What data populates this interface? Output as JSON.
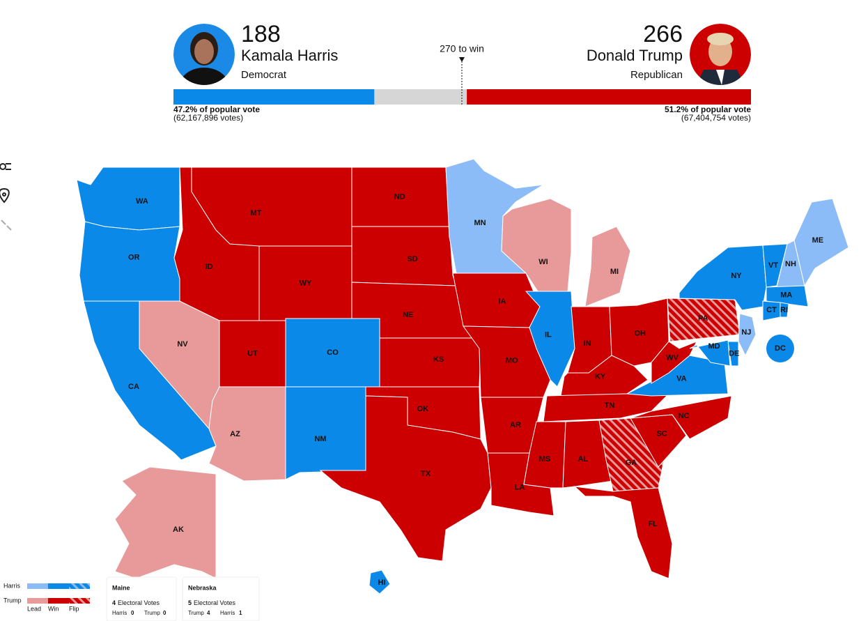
{
  "candidates": [
    {
      "name": "Kamala Harris",
      "party": "Democrat",
      "electoral_votes": 188,
      "popular_vote": "47.2% of popular vote",
      "votes": "(62,167,896 votes)",
      "short": "Harris",
      "win_color": "#0b89e8",
      "lead_color": "#8bbcf7",
      "photo_bg": "#1a8ae6"
    },
    {
      "name": "Donald Trump",
      "party": "Republican",
      "electoral_votes": 266,
      "popular_vote": "51.2% of popular vote",
      "votes": "(67,404,754 votes)",
      "short": "Trump",
      "win_color": "#cc0000",
      "lead_color": "#e89a9a",
      "photo_bg": "#cc0000"
    }
  ],
  "threshold": {
    "value": 270,
    "label": "270 to win"
  },
  "legend": {
    "columns": [
      "Lead",
      "Win",
      "Flip"
    ]
  },
  "states": [
    {
      "abbr": "WA",
      "winner": 0,
      "status": "win"
    },
    {
      "abbr": "OR",
      "winner": 0,
      "status": "win"
    },
    {
      "abbr": "CA",
      "winner": 0,
      "status": "win"
    },
    {
      "abbr": "NV",
      "winner": 1,
      "status": "lead"
    },
    {
      "abbr": "ID",
      "winner": 1,
      "status": "win"
    },
    {
      "abbr": "MT",
      "winner": 1,
      "status": "win"
    },
    {
      "abbr": "WY",
      "winner": 1,
      "status": "win"
    },
    {
      "abbr": "UT",
      "winner": 1,
      "status": "win"
    },
    {
      "abbr": "CO",
      "winner": 0,
      "status": "win"
    },
    {
      "abbr": "AZ",
      "winner": 1,
      "status": "lead"
    },
    {
      "abbr": "NM",
      "winner": 0,
      "status": "win"
    },
    {
      "abbr": "ND",
      "winner": 1,
      "status": "win"
    },
    {
      "abbr": "SD",
      "winner": 1,
      "status": "win"
    },
    {
      "abbr": "NE",
      "winner": 1,
      "status": "win"
    },
    {
      "abbr": "KS",
      "winner": 1,
      "status": "win"
    },
    {
      "abbr": "OK",
      "winner": 1,
      "status": "win"
    },
    {
      "abbr": "TX",
      "winner": 1,
      "status": "win"
    },
    {
      "abbr": "MN",
      "winner": 0,
      "status": "lead"
    },
    {
      "abbr": "IA",
      "winner": 1,
      "status": "win"
    },
    {
      "abbr": "MO",
      "winner": 1,
      "status": "win"
    },
    {
      "abbr": "AR",
      "winner": 1,
      "status": "win"
    },
    {
      "abbr": "LA",
      "winner": 1,
      "status": "win"
    },
    {
      "abbr": "WI",
      "winner": 1,
      "status": "lead"
    },
    {
      "abbr": "IL",
      "winner": 0,
      "status": "win"
    },
    {
      "abbr": "MI",
      "winner": 1,
      "status": "lead"
    },
    {
      "abbr": "IN",
      "winner": 1,
      "status": "win"
    },
    {
      "abbr": "OH",
      "winner": 1,
      "status": "win"
    },
    {
      "abbr": "KY",
      "winner": 1,
      "status": "win"
    },
    {
      "abbr": "TN",
      "winner": 1,
      "status": "win"
    },
    {
      "abbr": "MS",
      "winner": 1,
      "status": "win"
    },
    {
      "abbr": "AL",
      "winner": 1,
      "status": "win"
    },
    {
      "abbr": "GA",
      "winner": 1,
      "status": "flip"
    },
    {
      "abbr": "FL",
      "winner": 1,
      "status": "win"
    },
    {
      "abbr": "SC",
      "winner": 1,
      "status": "win"
    },
    {
      "abbr": "NC",
      "winner": 1,
      "status": "win"
    },
    {
      "abbr": "VA",
      "winner": 0,
      "status": "win"
    },
    {
      "abbr": "WV",
      "winner": 1,
      "status": "win"
    },
    {
      "abbr": "PA",
      "winner": 1,
      "status": "flip"
    },
    {
      "abbr": "NY",
      "winner": 0,
      "status": "win"
    },
    {
      "abbr": "VT",
      "winner": 0,
      "status": "win"
    },
    {
      "abbr": "NH",
      "winner": 0,
      "status": "lead"
    },
    {
      "abbr": "ME",
      "winner": 0,
      "status": "lead"
    },
    {
      "abbr": "MA",
      "winner": 0,
      "status": "win"
    },
    {
      "abbr": "CT",
      "winner": 0,
      "status": "win"
    },
    {
      "abbr": "RI",
      "winner": 0,
      "status": "win"
    },
    {
      "abbr": "NJ",
      "winner": 0,
      "status": "lead"
    },
    {
      "abbr": "DE",
      "winner": 0,
      "status": "win"
    },
    {
      "abbr": "MD",
      "winner": 0,
      "status": "win"
    },
    {
      "abbr": "DC",
      "winner": 0,
      "status": "win"
    },
    {
      "abbr": "AK",
      "winner": 1,
      "status": "lead"
    },
    {
      "abbr": "HI",
      "winner": 0,
      "status": "win"
    }
  ],
  "split_states": [
    {
      "name": "Maine",
      "electoral_votes": 4,
      "votes_label": "Electoral Votes",
      "results": [
        {
          "name": "Harris",
          "votes": 0,
          "winner": 0
        },
        {
          "name": "Trump",
          "votes": 0,
          "winner": 1
        }
      ]
    },
    {
      "name": "Nebraska",
      "electoral_votes": 5,
      "votes_label": "Electoral Votes",
      "results": [
        {
          "name": "Trump",
          "votes": 4,
          "winner": 1
        },
        {
          "name": "Harris",
          "votes": 1,
          "winner": 0
        }
      ]
    }
  ]
}
